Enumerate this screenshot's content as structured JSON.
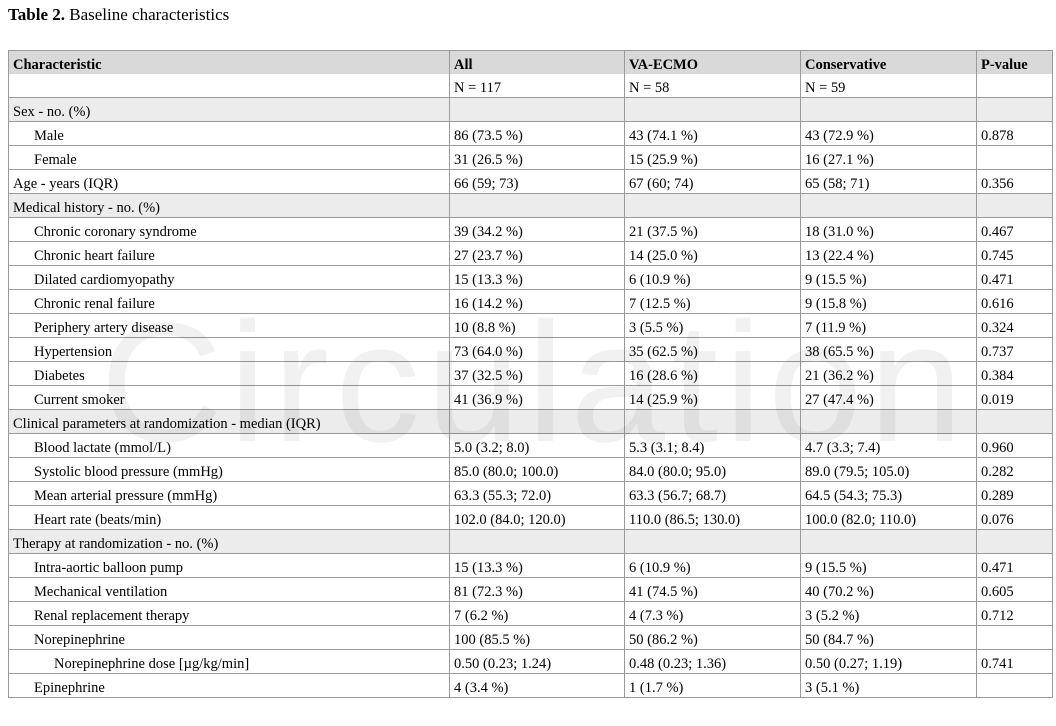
{
  "title": {
    "label": "Table 2.",
    "text": "Baseline characteristics"
  },
  "watermark": "Circulation",
  "table": {
    "header": [
      "Characteristic",
      "All",
      "VA-ECMO",
      "Conservative",
      "P-value"
    ],
    "counts": [
      null,
      "N = 117",
      "N = 58",
      "N = 59",
      null
    ],
    "rows": [
      {
        "level": 0,
        "section": true,
        "cells": [
          "Sex - no. (%)",
          null,
          null,
          null,
          null
        ]
      },
      {
        "level": 1,
        "cells": [
          "Male",
          "86 (73.5 %)",
          "43 (74.1 %)",
          "43 (72.9 %)",
          "0.878"
        ]
      },
      {
        "level": 1,
        "cells": [
          "Female",
          "31 (26.5 %)",
          "15 (25.9 %)",
          "16 (27.1 %)",
          null
        ]
      },
      {
        "level": 0,
        "cells": [
          "Age - years (IQR)",
          "66 (59; 73)",
          "67 (60; 74)",
          "65 (58; 71)",
          "0.356"
        ]
      },
      {
        "level": 0,
        "section": true,
        "cells": [
          "Medical history - no. (%)",
          null,
          null,
          null,
          null
        ]
      },
      {
        "level": 1,
        "cells": [
          "Chronic coronary syndrome",
          "39 (34.2 %)",
          "21 (37.5 %)",
          "18 (31.0 %)",
          "0.467"
        ]
      },
      {
        "level": 1,
        "cells": [
          "Chronic heart failure",
          "27 (23.7 %)",
          "14 (25.0 %)",
          "13 (22.4 %)",
          "0.745"
        ]
      },
      {
        "level": 1,
        "cells": [
          "Dilated cardiomyopathy",
          "15 (13.3 %)",
          "6 (10.9 %)",
          "9 (15.5 %)",
          "0.471"
        ]
      },
      {
        "level": 1,
        "cells": [
          "Chronic renal failure",
          "16 (14.2 %)",
          "7 (12.5 %)",
          "9 (15.8 %)",
          "0.616"
        ]
      },
      {
        "level": 1,
        "cells": [
          "Periphery artery disease",
          "10 (8.8 %)",
          "3 (5.5 %)",
          "7 (11.9 %)",
          "0.324"
        ]
      },
      {
        "level": 1,
        "cells": [
          "Hypertension",
          "73 (64.0 %)",
          "35 (62.5 %)",
          "38 (65.5 %)",
          "0.737"
        ]
      },
      {
        "level": 1,
        "cells": [
          "Diabetes",
          "37 (32.5 %)",
          "16 (28.6 %)",
          "21 (36.2 %)",
          "0.384"
        ]
      },
      {
        "level": 1,
        "cells": [
          "Current smoker",
          "41 (36.9 %)",
          "14 (25.9 %)",
          "27 (47.4 %)",
          "0.019"
        ]
      },
      {
        "level": 0,
        "section": true,
        "cells": [
          "Clinical parameters at randomization - median  (IQR)",
          null,
          null,
          null,
          null
        ]
      },
      {
        "level": 1,
        "cells": [
          "Blood lactate (mmol/L)",
          "5.0 (3.2; 8.0)",
          "5.3 (3.1; 8.4)",
          "4.7 (3.3; 7.4)",
          "0.960"
        ]
      },
      {
        "level": 1,
        "cells": [
          "Systolic blood pressure (mmHg)",
          "85.0 (80.0; 100.0)",
          "84.0 (80.0; 95.0)",
          "89.0 (79.5; 105.0)",
          "0.282"
        ]
      },
      {
        "level": 1,
        "cells": [
          "Mean arterial pressure (mmHg)",
          "63.3 (55.3; 72.0)",
          "63.3 (56.7; 68.7)",
          "64.5 (54.3; 75.3)",
          "0.289"
        ]
      },
      {
        "level": 1,
        "cells": [
          "Heart rate (beats/min)",
          "102.0 (84.0; 120.0)",
          "110.0 (86.5; 130.0)",
          "100.0 (82.0; 110.0)",
          "0.076"
        ]
      },
      {
        "level": 0,
        "section": true,
        "cells": [
          "Therapy at randomization - no. (%)",
          null,
          null,
          null,
          null
        ]
      },
      {
        "level": 1,
        "cells": [
          "Intra-aortic balloon pump",
          "15 (13.3 %)",
          "6 (10.9 %)",
          "9 (15.5 %)",
          "0.471"
        ]
      },
      {
        "level": 1,
        "cells": [
          "Mechanical ventilation",
          "81 (72.3 %)",
          "41 (74.5 %)",
          "40 (70.2 %)",
          "0.605"
        ]
      },
      {
        "level": 1,
        "cells": [
          "Renal replacement therapy",
          "7 (6.2 %)",
          "4 (7.3 %)",
          "3 (5.2 %)",
          "0.712"
        ]
      },
      {
        "level": 1,
        "cells": [
          "Norepinephrine",
          "100 (85.5 %)",
          "50 (86.2 %)",
          "50 (84.7 %)",
          null
        ]
      },
      {
        "level": 2,
        "cells": [
          "Norepinephrine  dose [µg/kg/min]",
          "0.50 (0.23; 1.24)",
          "0.48 (0.23; 1.36)",
          "0.50 (0.27; 1.19)",
          "0.741"
        ]
      },
      {
        "level": 1,
        "cells": [
          "Epinephrine",
          "4 (3.4 %)",
          "1 (1.7 %)",
          "3 (5.1 %)",
          null
        ]
      }
    ]
  }
}
